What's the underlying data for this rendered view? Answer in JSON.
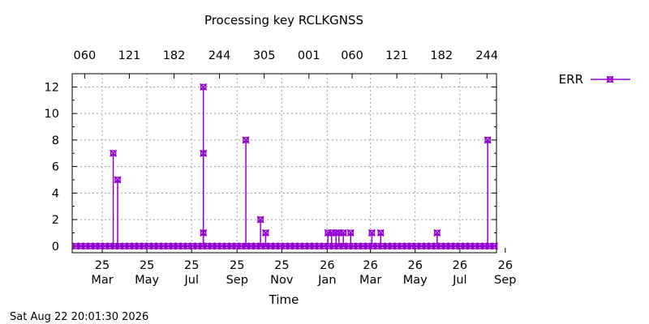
{
  "timestamp": "Sat Aug 22 20:01:30 2026",
  "colors": {
    "series": "#9400d3",
    "grid": "#a0a0a0",
    "axis": "#000000"
  },
  "chart_data": {
    "type": "line",
    "title": "Processing key RCLKGNSS",
    "xlabel": "Time",
    "ylabel": "",
    "x_axis_type": "date",
    "xlim": [
      "2025-02-12",
      "2026-09-14"
    ],
    "ylim": [
      -0.5,
      13
    ],
    "grid": true,
    "legend_position": "top-right-outside",
    "yticks": [
      0,
      2,
      4,
      6,
      8,
      10,
      12
    ],
    "xticks_bottom": [
      {
        "date": "2025-03-25",
        "day": "25",
        "month": "Mar"
      },
      {
        "date": "2025-05-25",
        "day": "25",
        "month": "May"
      },
      {
        "date": "2025-07-25",
        "day": "25",
        "month": "Jul"
      },
      {
        "date": "2025-09-25",
        "day": "25",
        "month": "Sep"
      },
      {
        "date": "2025-11-25",
        "day": "25",
        "month": "Nov"
      },
      {
        "date": "2026-01-26",
        "day": "26",
        "month": "Jan"
      },
      {
        "date": "2026-03-26",
        "day": "26",
        "month": "Mar"
      },
      {
        "date": "2026-05-26",
        "day": "26",
        "month": "May"
      },
      {
        "date": "2026-07-26",
        "day": "26",
        "month": "Jul"
      },
      {
        "date": "2026-09-26",
        "day": "26",
        "month": "Sep"
      }
    ],
    "xticks_top": [
      {
        "date": "2025-03-01",
        "label": "060"
      },
      {
        "date": "2025-05-01",
        "label": "121"
      },
      {
        "date": "2025-07-01",
        "label": "182"
      },
      {
        "date": "2025-09-01",
        "label": "244"
      },
      {
        "date": "2025-11-01",
        "label": "305"
      },
      {
        "date": "2026-01-01",
        "label": "001"
      },
      {
        "date": "2026-03-01",
        "label": "060"
      },
      {
        "date": "2026-05-01",
        "label": "121"
      },
      {
        "date": "2026-07-01",
        "label": "182"
      },
      {
        "date": "2026-09-01",
        "label": "244"
      }
    ],
    "series": [
      {
        "name": "ERR",
        "color": "#9400d3",
        "marker": "x-square",
        "baseline_start": "2025-02-17",
        "baseline_end": "2026-09-12",
        "baseline_value": 0,
        "points": [
          {
            "date": "2025-04-09",
            "value": 7
          },
          {
            "date": "2025-04-15",
            "value": 5
          },
          {
            "date": "2025-08-10",
            "value": 1
          },
          {
            "date": "2025-08-10",
            "value": 7
          },
          {
            "date": "2025-08-10",
            "value": 12
          },
          {
            "date": "2025-10-07",
            "value": 8
          },
          {
            "date": "2025-10-27",
            "value": 2
          },
          {
            "date": "2025-11-03",
            "value": 1
          },
          {
            "date": "2026-01-27",
            "value": 1
          },
          {
            "date": "2026-02-01",
            "value": 1
          },
          {
            "date": "2026-02-07",
            "value": 1
          },
          {
            "date": "2026-02-11",
            "value": 1
          },
          {
            "date": "2026-02-17",
            "value": 1
          },
          {
            "date": "2026-02-27",
            "value": 1
          },
          {
            "date": "2026-03-28",
            "value": 1
          },
          {
            "date": "2026-04-09",
            "value": 1
          },
          {
            "date": "2026-06-25",
            "value": 1
          },
          {
            "date": "2026-09-02",
            "value": 8
          }
        ]
      }
    ]
  }
}
